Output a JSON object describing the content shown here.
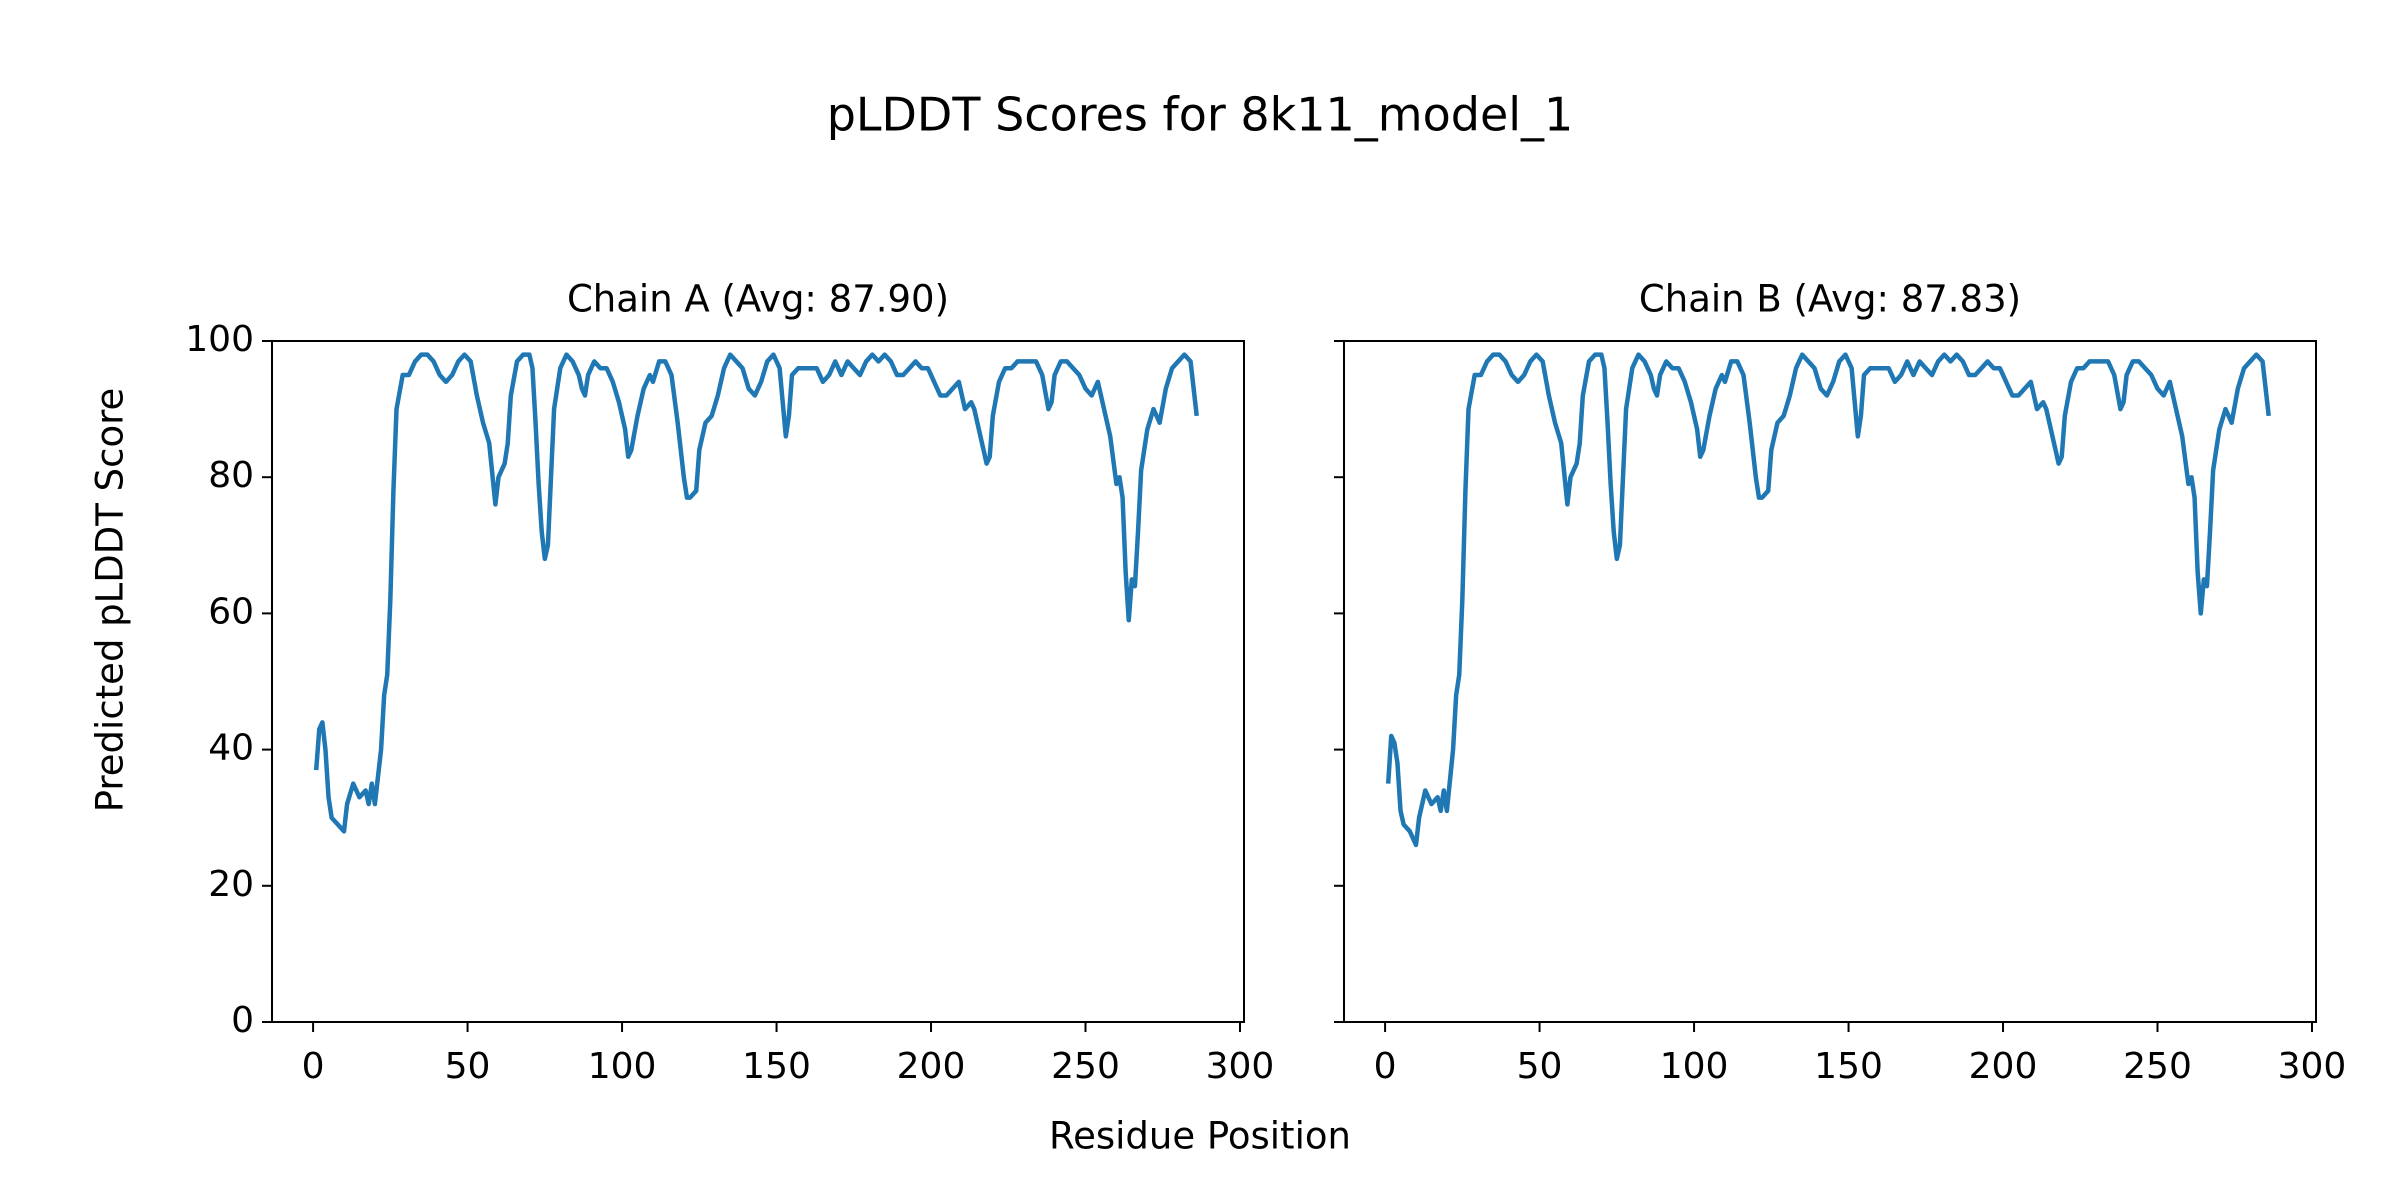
{
  "figure": {
    "title": "pLDDT Scores for 8k11_model_1",
    "x_label": "Residue Position",
    "y_label": "Predicted pLDDT Score"
  },
  "chart_data": [
    {
      "type": "line",
      "title": "Chain A (Avg: 87.90)",
      "color": "#1f77b4",
      "x": [
        1,
        2,
        3,
        4,
        5,
        6,
        8,
        10,
        11,
        13,
        15,
        17,
        18,
        19,
        20,
        22,
        23,
        24,
        25,
        26,
        27,
        29,
        31,
        33,
        35,
        37,
        39,
        41,
        43,
        45,
        47,
        49,
        51,
        53,
        55,
        57,
        59,
        60,
        62,
        63,
        64,
        66,
        68,
        70,
        71,
        72,
        73,
        74,
        75,
        76,
        77,
        78,
        80,
        82,
        84,
        86,
        87,
        88,
        89,
        91,
        93,
        95,
        97,
        99,
        101,
        102,
        103,
        105,
        107,
        109,
        110,
        112,
        114,
        116,
        118,
        120,
        121,
        122,
        124,
        125,
        127,
        129,
        131,
        133,
        135,
        137,
        139,
        141,
        143,
        145,
        147,
        149,
        151,
        152,
        153,
        154,
        155,
        157,
        159,
        161,
        163,
        165,
        167,
        169,
        171,
        173,
        175,
        177,
        179,
        181,
        183,
        185,
        187,
        189,
        191,
        193,
        195,
        197,
        199,
        201,
        203,
        205,
        207,
        209,
        211,
        213,
        214,
        216,
        218,
        219,
        220,
        222,
        224,
        226,
        228,
        230,
        232,
        234,
        236,
        238,
        239,
        240,
        242,
        244,
        246,
        248,
        250,
        252,
        254,
        256,
        258,
        260,
        261,
        262,
        263,
        264,
        265,
        266,
        267,
        268,
        270,
        272,
        274,
        276,
        278,
        280,
        282,
        284,
        286
      ],
      "values": [
        37,
        43,
        44,
        40,
        33,
        30,
        29,
        28,
        32,
        35,
        33,
        34,
        32,
        35,
        32,
        40,
        48,
        51,
        62,
        78,
        90,
        95,
        95,
        97,
        98,
        98,
        97,
        95,
        94,
        95,
        97,
        98,
        97,
        92,
        88,
        85,
        76,
        80,
        82,
        85,
        92,
        97,
        98,
        98,
        96,
        88,
        79,
        72,
        68,
        70,
        80,
        90,
        96,
        98,
        97,
        95,
        93,
        92,
        95,
        97,
        96,
        96,
        94,
        91,
        87,
        83,
        84,
        89,
        93,
        95,
        94,
        97,
        97,
        95,
        88,
        80,
        77,
        77,
        78,
        84,
        88,
        89,
        92,
        96,
        98,
        97,
        96,
        93,
        92,
        94,
        97,
        98,
        96,
        91,
        86,
        89,
        95,
        96,
        96,
        96,
        96,
        94,
        95,
        97,
        95,
        97,
        96,
        95,
        97,
        98,
        97,
        98,
        97,
        95,
        95,
        96,
        97,
        96,
        96,
        94,
        92,
        92,
        93,
        94,
        90,
        91,
        90,
        86,
        82,
        83,
        89,
        94,
        96,
        96,
        97,
        97,
        97,
        97,
        95,
        90,
        91,
        95,
        97,
        97,
        96,
        95,
        93,
        92,
        94,
        90,
        86,
        79,
        80,
        77,
        66,
        59,
        65,
        64,
        72,
        81,
        87,
        90,
        88,
        93,
        96,
        97,
        98,
        97,
        89
      ],
      "xlim": [
        -13.3,
        301.3
      ],
      "xticks": [
        0,
        50,
        100,
        150,
        200,
        250,
        300
      ],
      "ylim": [
        0,
        100
      ],
      "yticks": [
        0,
        20,
        40,
        60,
        80,
        100
      ],
      "show_ytick_labels": true
    },
    {
      "type": "line",
      "title": "Chain B (Avg: 87.83)",
      "color": "#1f77b4",
      "x": [
        1,
        2,
        3,
        4,
        5,
        6,
        8,
        10,
        11,
        13,
        15,
        17,
        18,
        19,
        20,
        22,
        23,
        24,
        25,
        26,
        27,
        29,
        31,
        33,
        35,
        37,
        39,
        41,
        43,
        45,
        47,
        49,
        51,
        53,
        55,
        57,
        59,
        60,
        62,
        63,
        64,
        66,
        68,
        70,
        71,
        72,
        73,
        74,
        75,
        76,
        77,
        78,
        80,
        82,
        84,
        86,
        87,
        88,
        89,
        91,
        93,
        95,
        97,
        99,
        101,
        102,
        103,
        105,
        107,
        109,
        110,
        112,
        114,
        116,
        118,
        120,
        121,
        122,
        124,
        125,
        127,
        129,
        131,
        133,
        135,
        137,
        139,
        141,
        143,
        145,
        147,
        149,
        151,
        152,
        153,
        154,
        155,
        157,
        159,
        161,
        163,
        165,
        167,
        169,
        171,
        173,
        175,
        177,
        179,
        181,
        183,
        185,
        187,
        189,
        191,
        193,
        195,
        197,
        199,
        201,
        203,
        205,
        207,
        209,
        211,
        213,
        214,
        216,
        218,
        219,
        220,
        222,
        224,
        226,
        228,
        230,
        232,
        234,
        236,
        238,
        239,
        240,
        242,
        244,
        246,
        248,
        250,
        252,
        254,
        256,
        258,
        260,
        261,
        262,
        263,
        264,
        265,
        266,
        267,
        268,
        270,
        272,
        274,
        276,
        278,
        280,
        282,
        284,
        286
      ],
      "values": [
        35,
        42,
        41,
        38,
        31,
        29,
        28,
        26,
        30,
        34,
        32,
        33,
        31,
        34,
        31,
        40,
        48,
        51,
        62,
        78,
        90,
        95,
        95,
        97,
        98,
        98,
        97,
        95,
        94,
        95,
        97,
        98,
        97,
        92,
        88,
        85,
        76,
        80,
        82,
        85,
        92,
        97,
        98,
        98,
        96,
        88,
        79,
        72,
        68,
        70,
        80,
        90,
        96,
        98,
        97,
        95,
        93,
        92,
        95,
        97,
        96,
        96,
        94,
        91,
        87,
        83,
        84,
        89,
        93,
        95,
        94,
        97,
        97,
        95,
        88,
        80,
        77,
        77,
        78,
        84,
        88,
        89,
        92,
        96,
        98,
        97,
        96,
        93,
        92,
        94,
        97,
        98,
        96,
        91,
        86,
        89,
        95,
        96,
        96,
        96,
        96,
        94,
        95,
        97,
        95,
        97,
        96,
        95,
        97,
        98,
        97,
        98,
        97,
        95,
        95,
        96,
        97,
        96,
        96,
        94,
        92,
        92,
        93,
        94,
        90,
        91,
        90,
        86,
        82,
        83,
        89,
        94,
        96,
        96,
        97,
        97,
        97,
        97,
        95,
        90,
        91,
        95,
        97,
        97,
        96,
        95,
        93,
        92,
        94,
        90,
        86,
        79,
        80,
        77,
        66,
        60,
        65,
        64,
        72,
        81,
        87,
        90,
        88,
        93,
        96,
        97,
        98,
        97,
        89
      ],
      "xlim": [
        -13.3,
        301.3
      ],
      "xticks": [
        0,
        50,
        100,
        150,
        200,
        250,
        300
      ],
      "ylim": [
        0,
        100
      ],
      "yticks": [
        0,
        20,
        40,
        60,
        80,
        100
      ],
      "show_ytick_labels": false
    }
  ]
}
